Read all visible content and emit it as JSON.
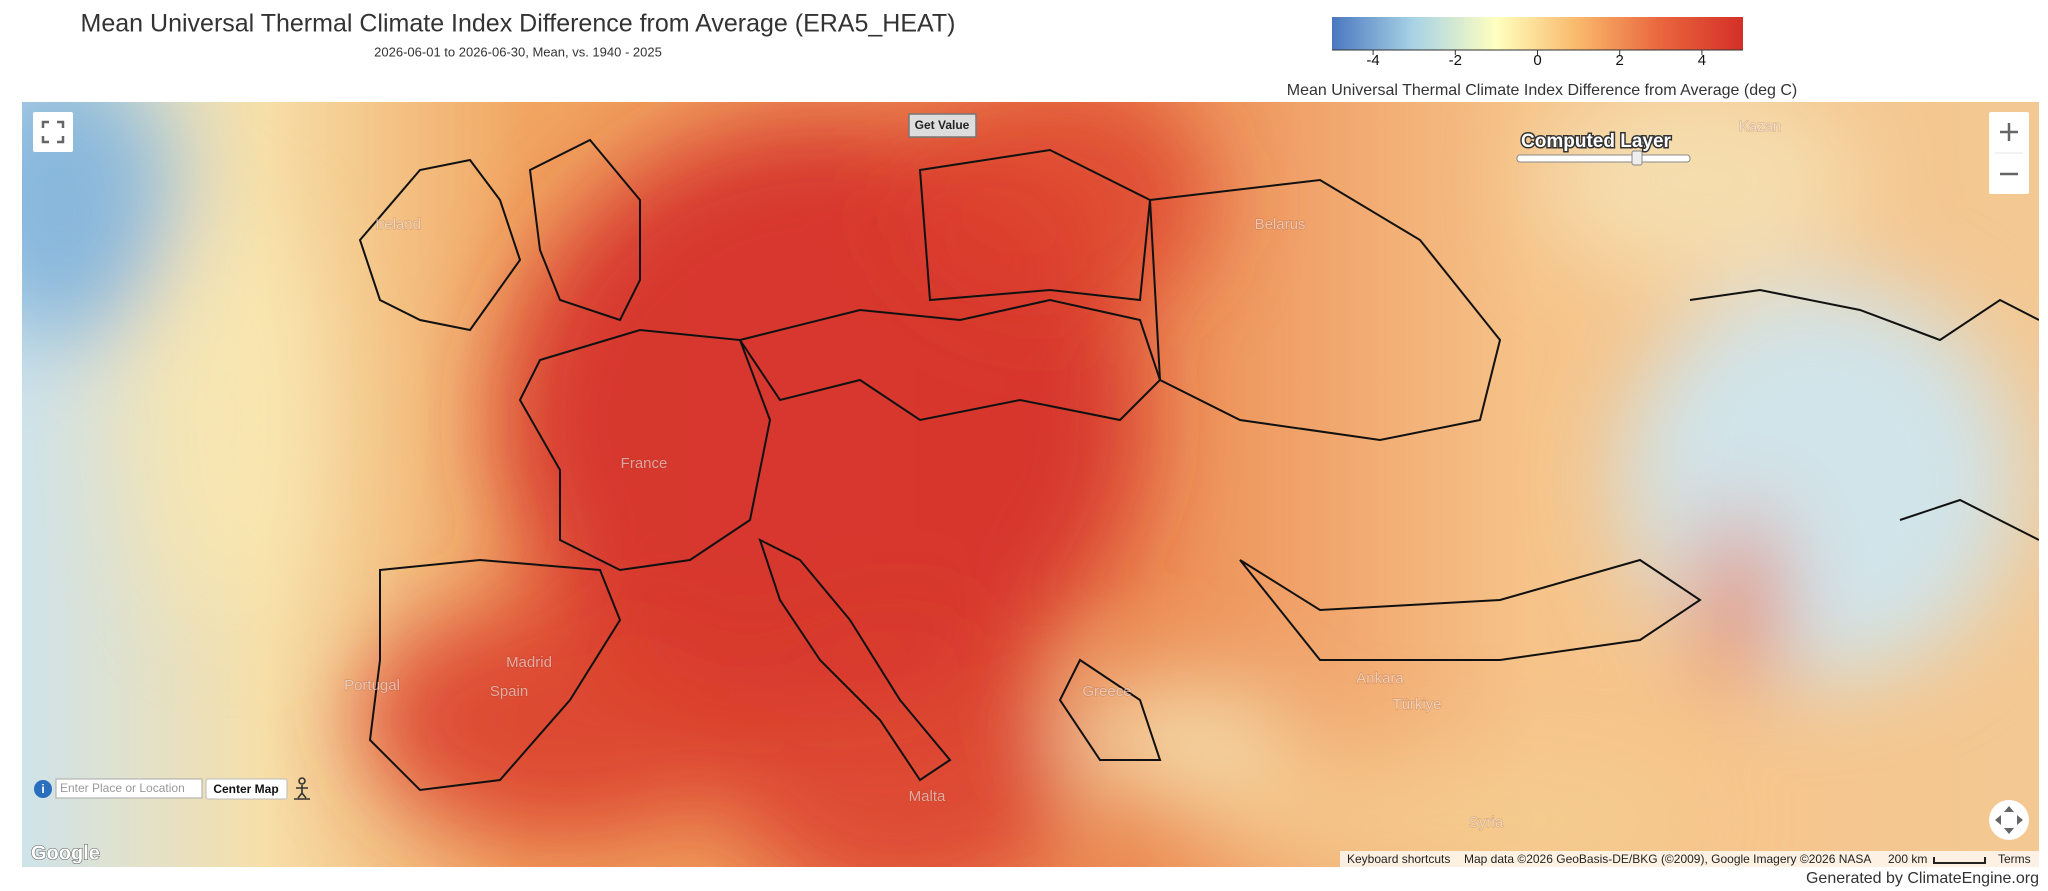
{
  "header": {
    "title": "Mean Universal Thermal Climate Index Difference from Average (ERA5_HEAT)",
    "subtitle": "2026-06-01 to 2026-06-30, Mean, vs. 1940 - 2025"
  },
  "legend": {
    "lim": [
      -5,
      5
    ],
    "ticks": [
      -4,
      -2,
      0,
      2,
      4
    ],
    "colors": [
      "#4a78c0",
      "#a9d3e6",
      "#ffffbf",
      "#f9b86a",
      "#e9663e",
      "#d42f27"
    ],
    "label": "Mean Universal Thermal Climate Index Difference from Average (deg C)"
  },
  "map": {
    "get_value": "Get Value",
    "layer_label": "Computed Layer",
    "search_placeholder": "Enter Place or Location",
    "center_button": "Center Map",
    "place_labels": [
      "Ireland",
      "France",
      "Madrid",
      "Spain",
      "Portugal",
      "Greece",
      "Ankara",
      "Türkiye",
      "Syria",
      "Malta",
      "Belarus",
      "Kazan"
    ],
    "logo": "Google",
    "attribution": {
      "shortcuts": "Keyboard shortcuts",
      "map_data": "Map data ©2026 GeoBasis-DE/BKG (©2009), Google Imagery ©2026 NASA",
      "scale": "200 km",
      "terms": "Terms"
    }
  },
  "footer": "Generated by ClimateEngine.org"
}
